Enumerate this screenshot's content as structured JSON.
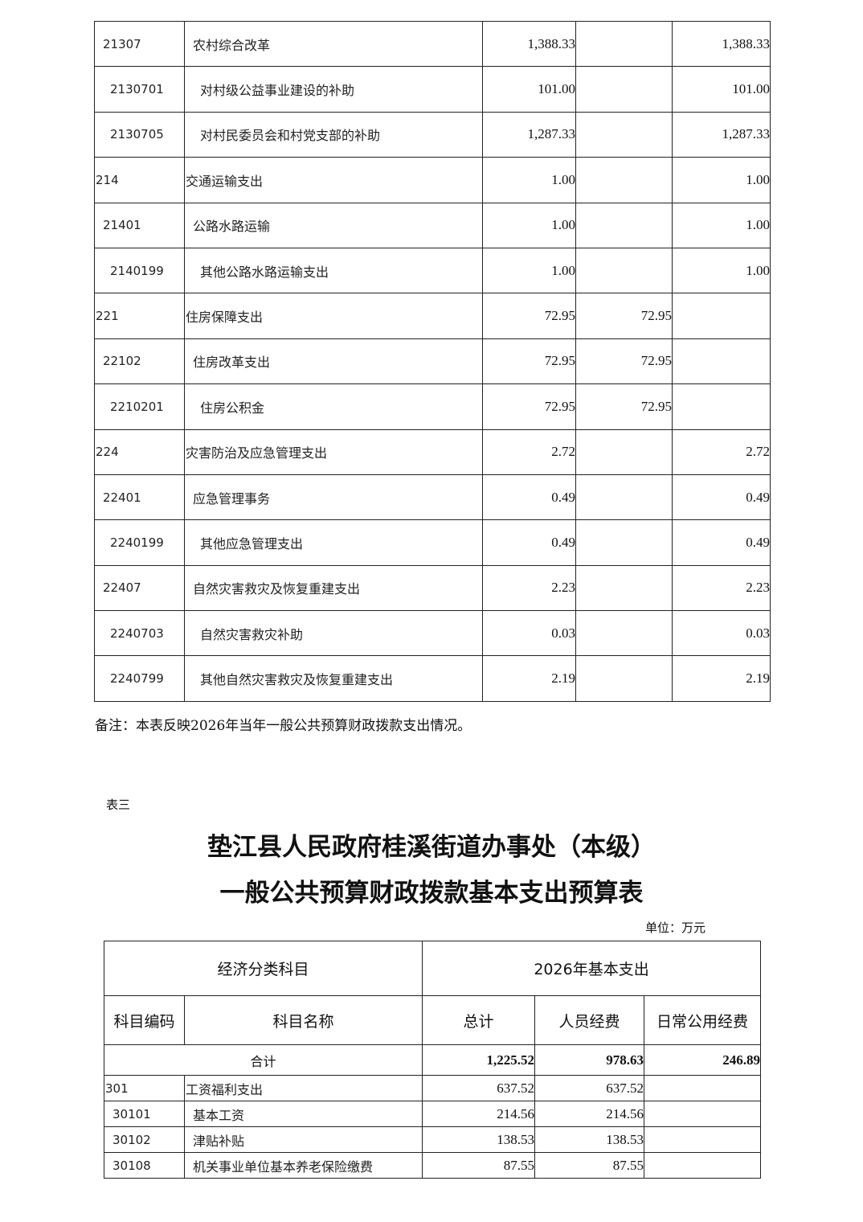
{
  "table_top": {
    "rows": [
      {
        "code": "21307",
        "name": "农村综合改革",
        "level": 1,
        "total": "1,388.33",
        "personnel": "",
        "public": "1,388.33"
      },
      {
        "code": "2130701",
        "name": "对村级公益事业建设的补助",
        "level": 2,
        "total": "101.00",
        "personnel": "",
        "public": "101.00"
      },
      {
        "code": "2130705",
        "name": "对村民委员会和村党支部的补助",
        "level": 2,
        "total": "1,287.33",
        "personnel": "",
        "public": "1,287.33"
      },
      {
        "code": "214",
        "name": "交通运输支出",
        "level": 0,
        "total": "1.00",
        "personnel": "",
        "public": "1.00"
      },
      {
        "code": "21401",
        "name": "公路水路运输",
        "level": 1,
        "total": "1.00",
        "personnel": "",
        "public": "1.00"
      },
      {
        "code": "2140199",
        "name": "其他公路水路运输支出",
        "level": 2,
        "total": "1.00",
        "personnel": "",
        "public": "1.00"
      },
      {
        "code": "221",
        "name": "住房保障支出",
        "level": 0,
        "total": "72.95",
        "personnel": "72.95",
        "public": ""
      },
      {
        "code": "22102",
        "name": "住房改革支出",
        "level": 1,
        "total": "72.95",
        "personnel": "72.95",
        "public": ""
      },
      {
        "code": "2210201",
        "name": "住房公积金",
        "level": 2,
        "total": "72.95",
        "personnel": "72.95",
        "public": ""
      },
      {
        "code": "224",
        "name": "灾害防治及应急管理支出",
        "level": 0,
        "total": "2.72",
        "personnel": "",
        "public": "2.72"
      },
      {
        "code": "22401",
        "name": "应急管理事务",
        "level": 1,
        "total": "0.49",
        "personnel": "",
        "public": "0.49"
      },
      {
        "code": "2240199",
        "name": "其他应急管理支出",
        "level": 2,
        "total": "0.49",
        "personnel": "",
        "public": "0.49"
      },
      {
        "code": "22407",
        "name": "自然灾害救灾及恢复重建支出",
        "level": 1,
        "total": "2.23",
        "personnel": "",
        "public": "2.23"
      },
      {
        "code": "2240703",
        "name": "自然灾害救灾补助",
        "level": 2,
        "total": "0.03",
        "personnel": "",
        "public": "0.03"
      },
      {
        "code": "2240799",
        "name": "其他自然灾害救灾及恢复重建支出",
        "level": 2,
        "total": "2.19",
        "personnel": "",
        "public": "2.19"
      }
    ]
  },
  "note": "备注：本表反映2026年当年一般公共预算财政拨款支出情况。",
  "table_number": "表三",
  "title_line1": "垫江县人民政府桂溪街道办事处（本级）",
  "title_line2": "一般公共预算财政拨款基本支出预算表",
  "unit": "单位：万元",
  "table_bottom": {
    "header_group_left": "经济分类科目",
    "header_group_right": "2026年基本支出",
    "headers": [
      "科目编码",
      "科目名称",
      "总计",
      "人员经费",
      "日常公用经费"
    ],
    "total_row": {
      "label": "合计",
      "total": "1,225.52",
      "personnel": "978.63",
      "public": "246.89"
    },
    "rows": [
      {
        "code": "301",
        "name": "工资福利支出",
        "level": 0,
        "total": "637.52",
        "personnel": "637.52",
        "public": ""
      },
      {
        "code": "30101",
        "name": "基本工资",
        "level": 1,
        "total": "214.56",
        "personnel": "214.56",
        "public": ""
      },
      {
        "code": "30102",
        "name": "津贴补贴",
        "level": 1,
        "total": "138.53",
        "personnel": "138.53",
        "public": ""
      },
      {
        "code": "30108",
        "name": "机关事业单位基本养老保险缴费",
        "level": 1,
        "total": "87.55",
        "personnel": "87.55",
        "public": ""
      }
    ]
  }
}
